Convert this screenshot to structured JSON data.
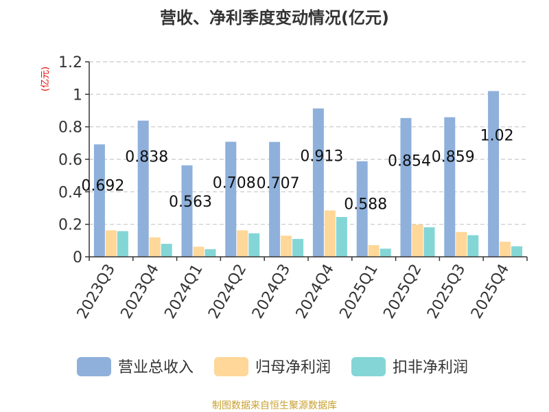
{
  "chart_data": {
    "type": "bar",
    "title": "营收、净利季度变动情况(亿元)",
    "ylabel": "(亿元)",
    "xlabel": "",
    "categories": [
      "2023Q3",
      "2023Q4",
      "2024Q1",
      "2024Q2",
      "2024Q3",
      "2024Q4",
      "2025Q1",
      "2025Q2",
      "2025Q3",
      "2025Q4"
    ],
    "ylim": [
      0,
      1.2
    ],
    "yticks": [
      "0",
      "0.2",
      "0.4",
      "0.6",
      "0.8",
      "1",
      "1.2"
    ],
    "grid": true,
    "legend_position": "bottom",
    "series": [
      {
        "name": "营业总收入",
        "color": "#8eb0db",
        "values": [
          0.692,
          0.838,
          0.563,
          0.708,
          0.707,
          0.913,
          0.588,
          0.854,
          0.859,
          1.02
        ],
        "labels": [
          "0.692",
          "0.838",
          "0.563",
          "0.708",
          "0.707",
          "0.913",
          "0.588",
          "0.854",
          "0.859",
          "1.02"
        ]
      },
      {
        "name": "归母净利润",
        "color": "#ffd799",
        "values": [
          0.163,
          0.12,
          0.062,
          0.163,
          0.13,
          0.285,
          0.072,
          0.198,
          0.153,
          0.093
        ]
      },
      {
        "name": "扣非净利润",
        "color": "#84d6d6",
        "values": [
          0.158,
          0.08,
          0.047,
          0.145,
          0.11,
          0.245,
          0.05,
          0.182,
          0.133,
          0.065
        ]
      }
    ],
    "source": "制图数据来自恒生聚源数据库"
  }
}
